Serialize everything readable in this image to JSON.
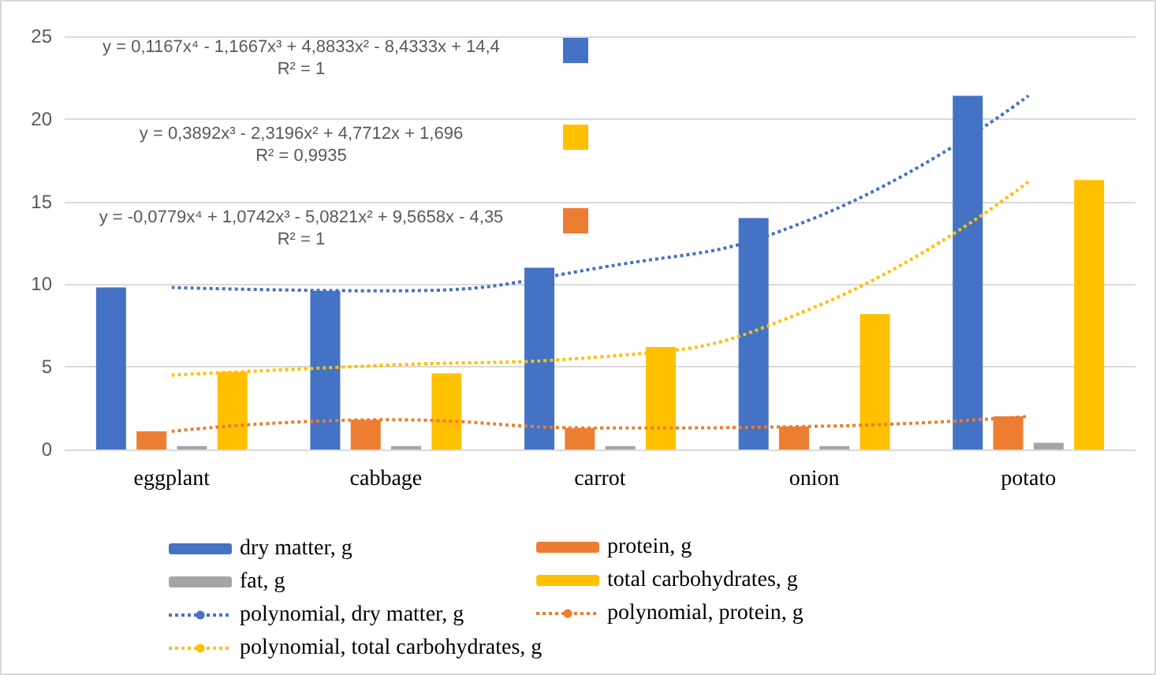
{
  "chart_data": {
    "type": "bar",
    "categories": [
      "eggplant",
      "cabbage",
      "carrot",
      "onion",
      "potato"
    ],
    "series": [
      {
        "name": "dry matter, g",
        "color": "#4472c4",
        "values": [
          9.8,
          9.6,
          11.0,
          14.0,
          21.4
        ]
      },
      {
        "name": "protein, g",
        "color": "#ed7d31",
        "values": [
          1.1,
          1.8,
          1.3,
          1.4,
          2.0
        ]
      },
      {
        "name": "fat, g",
        "color": "#a5a5a5",
        "values": [
          0.2,
          0.2,
          0.2,
          0.2,
          0.4
        ]
      },
      {
        "name": "total carbohydrates, g",
        "color": "#ffc000",
        "values": [
          4.7,
          4.6,
          6.2,
          8.2,
          16.3
        ]
      },
      {
        "name": "polynomial, dry matter, g",
        "type": "line",
        "line_style": "dotted",
        "color": "#4472c4",
        "values": [
          9.8,
          9.6,
          11.0,
          14.0,
          21.4
        ]
      },
      {
        "name": "polynomial, protein, g",
        "type": "line",
        "line_style": "dotted",
        "color": "#ed7d31",
        "values": [
          1.1,
          1.8,
          1.3,
          1.4,
          2.0
        ]
      },
      {
        "name": "polynomial, total carbohydrates, g",
        "type": "line",
        "line_style": "dotted",
        "color": "#ffc000",
        "values": [
          4.5,
          5.1,
          5.6,
          8.6,
          16.2
        ]
      }
    ],
    "annotations": [
      "y = 0,1167x⁴ - 1,1667x³ + 4,8833x² - 8,4333x + 14,4\nR² = 1",
      "y = 0,3892x³ - 2,3196x² + 4,7712x + 1,696\nR² = 0,9935",
      "y = -0,0779x⁴ + 1,0742x³ - 5,0821x² + 9,5658x - 4,35\nR² = 1"
    ],
    "ylim": [
      0,
      25
    ],
    "yticks": [
      0,
      5,
      10,
      15,
      20,
      25
    ],
    "grid": "y",
    "legend": "bottom",
    "marker": "none"
  }
}
